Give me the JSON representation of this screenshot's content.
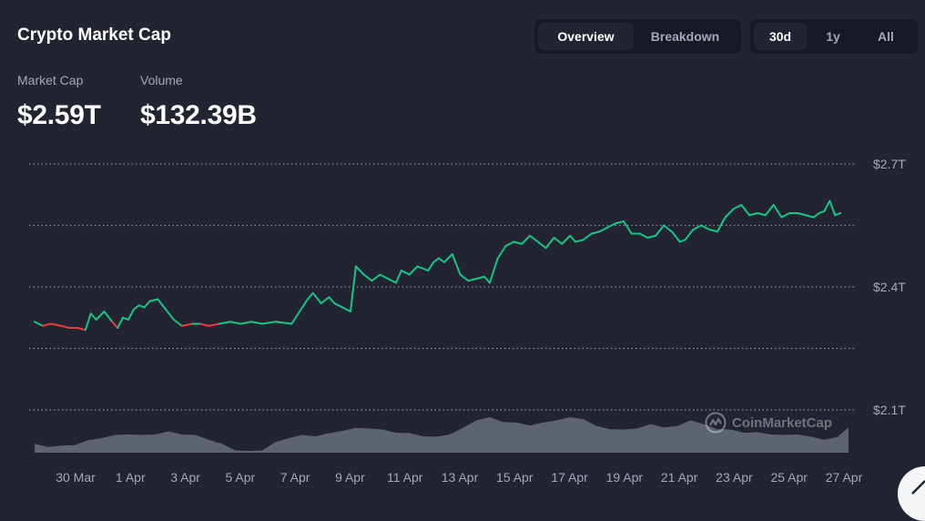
{
  "header": {
    "title": "Crypto Market Cap",
    "view_tabs": [
      {
        "label": "Overview",
        "active": true
      },
      {
        "label": "Breakdown",
        "active": false
      }
    ],
    "range_tabs": [
      {
        "label": "30d",
        "active": true
      },
      {
        "label": "1y",
        "active": false
      },
      {
        "label": "All",
        "active": false
      }
    ]
  },
  "stats": {
    "market_cap": {
      "label": "Market Cap",
      "value": "$2.59T"
    },
    "volume": {
      "label": "Volume",
      "value": "$132.39B"
    }
  },
  "watermark": {
    "text": "CoinMarketCap",
    "icon": "coinmarketcap-logo-icon"
  },
  "colors": {
    "background": "#222531",
    "up": "#16c784",
    "down": "#ea3943",
    "volume": "#656a7a",
    "grid": "#858ca2",
    "text_muted": "#a1a7bb"
  },
  "chart_data": {
    "type": "line",
    "x_tick_labels": [
      "30 Mar",
      "1 Apr",
      "3 Apr",
      "5 Apr",
      "7 Apr",
      "9 Apr",
      "11 Apr",
      "13 Apr",
      "15 Apr",
      "17 Apr",
      "19 Apr",
      "21 Apr",
      "23 Apr",
      "25 Apr",
      "27 Apr"
    ],
    "y_tick_labels": [
      "$2.7T",
      "$2.4T",
      "$2.1T"
    ],
    "y_ticks": [
      2.7,
      2.4,
      2.1
    ],
    "ylim": [
      2.1,
      2.7
    ],
    "xlim": [
      0,
      30.4
    ],
    "grid": true,
    "grid_values": [
      2.7,
      2.55,
      2.4,
      2.25,
      2.1
    ],
    "baseline": 2.31,
    "series": [
      {
        "x": [
          0,
          0.3,
          0.6,
          1.0,
          1.3,
          1.6,
          1.9,
          2.1,
          2.3,
          2.6,
          2.9,
          3.1,
          3.3,
          3.5,
          3.7,
          3.9,
          4.1,
          4.3,
          4.6,
          4.9,
          5.2,
          5.5,
          5.9,
          6.2,
          6.5,
          6.9,
          7.3,
          7.7,
          8.1,
          8.5,
          9.0,
          9.6,
          10.2,
          10.4,
          10.7,
          11.0,
          11.2,
          11.5,
          11.8,
          12.0,
          12.3,
          12.6,
          12.9,
          13.2,
          13.5,
          13.7,
          14.0,
          14.3,
          14.7,
          14.9,
          15.1,
          15.3,
          15.6,
          15.9,
          16.2,
          16.5,
          16.8,
          17.0,
          17.3,
          17.6,
          17.9,
          18.2,
          18.5,
          18.8,
          19.1,
          19.4,
          19.7,
          20.0,
          20.2,
          20.5,
          20.8,
          21.1,
          21.4,
          21.7,
          22.0,
          22.3,
          22.6,
          22.9,
          23.2,
          23.5,
          23.8,
          24.1,
          24.3,
          24.6,
          24.9,
          25.2,
          25.5,
          25.8,
          26.1,
          26.4,
          26.7,
          27.0,
          27.3,
          27.6,
          27.9,
          28.2,
          28.5,
          28.8,
          29.1,
          29.3,
          29.5,
          29.7,
          29.9,
          30.1
        ],
        "y": [
          2.315,
          2.305,
          2.31,
          2.305,
          2.3,
          2.3,
          2.295,
          2.335,
          2.32,
          2.34,
          2.315,
          2.3,
          2.325,
          2.32,
          2.345,
          2.355,
          2.35,
          2.365,
          2.37,
          2.345,
          2.32,
          2.305,
          2.31,
          2.31,
          2.305,
          2.31,
          2.315,
          2.31,
          2.315,
          2.31,
          2.315,
          2.31,
          2.37,
          2.385,
          2.36,
          2.375,
          2.36,
          2.35,
          2.34,
          2.45,
          2.43,
          2.415,
          2.43,
          2.42,
          2.41,
          2.44,
          2.43,
          2.45,
          2.44,
          2.46,
          2.47,
          2.46,
          2.48,
          2.43,
          2.415,
          2.42,
          2.425,
          2.41,
          2.47,
          2.5,
          2.51,
          2.505,
          2.525,
          2.51,
          2.495,
          2.52,
          2.505,
          2.525,
          2.51,
          2.515,
          2.53,
          2.535,
          2.545,
          2.555,
          2.56,
          2.53,
          2.53,
          2.52,
          2.525,
          2.55,
          2.535,
          2.51,
          2.515,
          2.54,
          2.55,
          2.54,
          2.535,
          2.57,
          2.59,
          2.6,
          2.575,
          2.58,
          2.575,
          2.6,
          2.57,
          2.58,
          2.58,
          2.575,
          2.57,
          2.58,
          2.585,
          2.61,
          2.575,
          2.58
        ]
      }
    ],
    "volume": {
      "x": [
        0,
        0.5,
        1,
        1.5,
        2,
        2.5,
        3,
        3.5,
        4,
        4.5,
        5,
        5.5,
        6,
        6.5,
        7,
        7.5,
        8,
        8.5,
        9,
        9.5,
        10,
        10.5,
        11,
        11.5,
        12,
        12.5,
        13,
        13.5,
        14,
        14.5,
        15,
        15.5,
        16,
        16.5,
        17,
        17.5,
        18,
        18.5,
        19,
        19.5,
        20,
        20.5,
        21,
        21.5,
        22,
        22.5,
        23,
        23.5,
        24,
        24.5,
        25,
        25.5,
        26,
        26.5,
        27,
        27.5,
        28,
        28.5,
        29,
        29.5,
        30,
        30.4
      ],
      "relative": [
        0.25,
        0.2,
        0.2,
        0.25,
        0.35,
        0.45,
        0.5,
        0.55,
        0.5,
        0.55,
        0.6,
        0.55,
        0.5,
        0.4,
        0.25,
        0.1,
        0.05,
        0.1,
        0.3,
        0.45,
        0.5,
        0.5,
        0.55,
        0.65,
        0.7,
        0.72,
        0.65,
        0.6,
        0.55,
        0.5,
        0.45,
        0.55,
        0.7,
        0.95,
        1.0,
        0.9,
        0.85,
        0.8,
        0.85,
        0.95,
        1.0,
        0.98,
        0.75,
        0.7,
        0.65,
        0.72,
        0.8,
        0.75,
        0.75,
        0.95,
        0.8,
        0.7,
        0.65,
        0.6,
        0.58,
        0.55,
        0.5,
        0.55,
        0.45,
        0.4,
        0.45,
        0.75
      ]
    }
  }
}
